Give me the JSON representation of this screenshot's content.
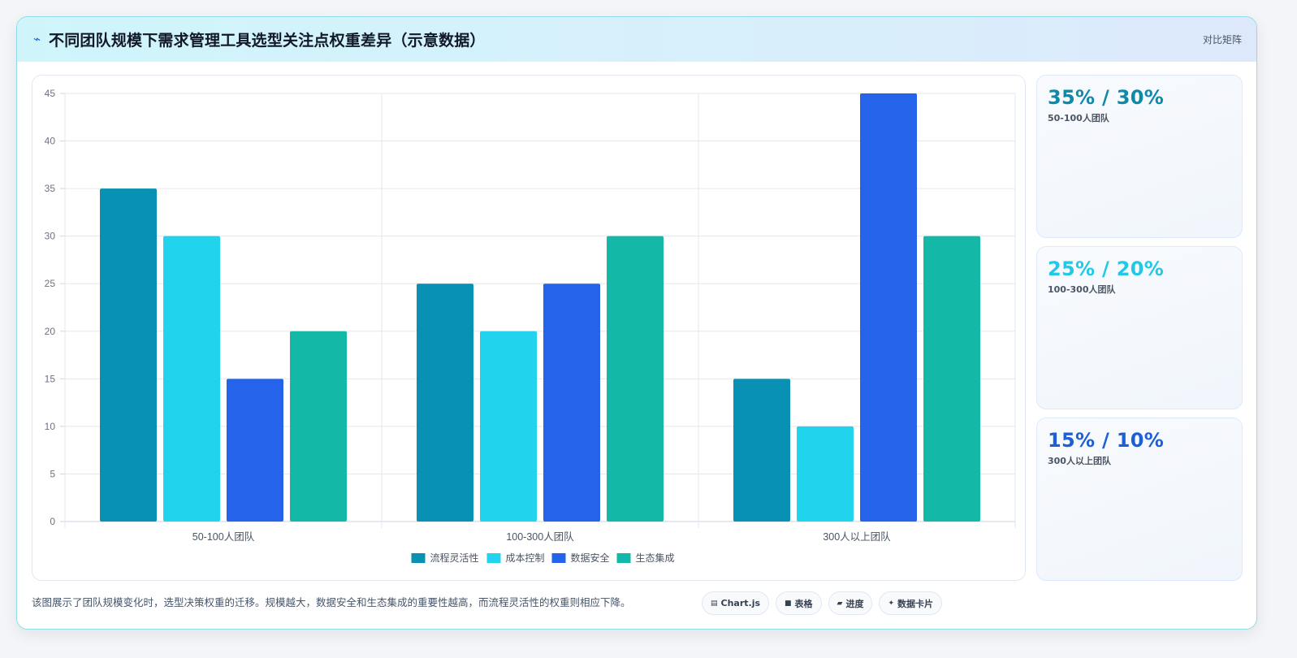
{
  "header": {
    "icon": "lightning-icon",
    "title": "不同团队规模下需求管理工具选型关注点权重差异（示意数据）",
    "tag": "对比矩阵"
  },
  "chart_data": {
    "type": "bar",
    "title": "",
    "xlabel": "",
    "ylabel": "",
    "categories": [
      "50-100人团队",
      "100-300人团队",
      "300人以上团队"
    ],
    "series": [
      {
        "name": "流程灵活性",
        "color": "#0891b2",
        "values": [
          35,
          25,
          15
        ]
      },
      {
        "name": "成本控制",
        "color": "#22d3ee",
        "values": [
          30,
          20,
          10
        ]
      },
      {
        "name": "数据安全",
        "color": "#2563eb",
        "values": [
          15,
          25,
          45
        ]
      },
      {
        "name": "生态集成",
        "color": "#14b8a6",
        "values": [
          20,
          30,
          30
        ]
      }
    ],
    "ylim": [
      0,
      45
    ],
    "yticks": [
      0,
      5,
      10,
      15,
      20,
      25,
      30,
      35,
      40,
      45
    ],
    "grid": true,
    "legend_position": "bottom"
  },
  "side_cards": [
    {
      "value": "35% / 30%",
      "label": "50-100人团队",
      "color": "#0e89a8"
    },
    {
      "value": "25% / 20%",
      "label": "100-300人团队",
      "color": "#22c8e5"
    },
    {
      "value": "15% / 10%",
      "label": "300人以上团队",
      "color": "#1d5fd6"
    }
  ],
  "footer": {
    "description": "该图展示了团队规模变化时，选型决策权重的迁移。规模越大，数据安全和生态集成的重要性越高，而流程灵活性的权重则相应下降。",
    "chips": [
      {
        "icon": "chart-icon",
        "label": "Chart.js"
      },
      {
        "icon": "table-icon",
        "label": "表格"
      },
      {
        "icon": "progress-icon",
        "label": "进度"
      },
      {
        "icon": "sparkle-icon",
        "label": "数据卡片"
      }
    ]
  }
}
